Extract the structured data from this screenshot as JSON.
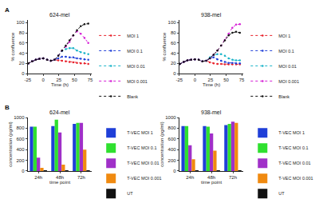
{
  "panel_labels": [
    "A",
    "B"
  ],
  "chart_data": [
    {
      "type": "line",
      "title": "624-mel",
      "x_label": "Time (h)",
      "y_label": "% confluence",
      "x": [
        -24,
        -18,
        -12,
        -6,
        0,
        6,
        12,
        18,
        24,
        30,
        36,
        42,
        48,
        54,
        60,
        66,
        72
      ],
      "series": [
        {
          "name": "MOI 1",
          "color": "#e8202a",
          "values": [
            20,
            24,
            27,
            29,
            30,
            27,
            25,
            27,
            26,
            25,
            24,
            23,
            22,
            21,
            20,
            20,
            19
          ]
        },
        {
          "name": "MOI 0.1",
          "color": "#1f3fd8",
          "values": [
            20,
            24,
            27,
            29,
            30,
            27,
            25,
            27,
            30,
            33,
            33,
            32,
            32,
            30,
            29,
            28,
            27
          ]
        },
        {
          "name": "MOI 0.01",
          "color": "#17b3c8",
          "values": [
            20,
            24,
            27,
            29,
            30,
            27,
            25,
            27,
            35,
            44,
            48,
            50,
            50,
            45,
            42,
            40,
            38
          ]
        },
        {
          "name": "MOI 0.001",
          "color": "#d61fd6",
          "values": [
            20,
            24,
            27,
            29,
            30,
            27,
            25,
            27,
            35,
            45,
            53,
            62,
            75,
            83,
            78,
            70,
            60
          ]
        },
        {
          "name": "Blank",
          "color": "#111111",
          "values": [
            20,
            24,
            27,
            29,
            30,
            27,
            25,
            27,
            35,
            45,
            55,
            65,
            75,
            85,
            93,
            97,
            98
          ]
        }
      ],
      "xlim": [
        -25,
        78
      ],
      "xticks": [
        -25,
        0,
        25,
        50,
        75
      ],
      "ylim": [
        0,
        105
      ],
      "yticks": [
        0,
        20,
        40,
        60,
        80,
        100
      ],
      "grid": false,
      "legend": "right",
      "marker": "circle",
      "line_style": "dotted"
    },
    {
      "type": "line",
      "title": "938-mel",
      "x_label": "Time (h)",
      "y_label": "% confluence",
      "x": [
        -24,
        -18,
        -12,
        -6,
        0,
        6,
        12,
        18,
        24,
        30,
        36,
        42,
        48,
        54,
        60,
        66,
        72
      ],
      "series": [
        {
          "name": "MOI 1",
          "color": "#e8202a",
          "values": [
            19,
            23,
            26,
            27,
            28,
            27,
            24,
            25,
            22,
            20,
            19,
            19,
            18,
            18,
            18,
            18,
            18
          ]
        },
        {
          "name": "MOI 0.1",
          "color": "#1f3fd8",
          "values": [
            19,
            23,
            26,
            27,
            28,
            27,
            24,
            25,
            30,
            32,
            28,
            25,
            23,
            21,
            21,
            20,
            20
          ]
        },
        {
          "name": "MOI 0.01",
          "color": "#17b3c8",
          "values": [
            19,
            23,
            26,
            27,
            28,
            27,
            24,
            25,
            32,
            36,
            38,
            38,
            35,
            30,
            27,
            26,
            26
          ]
        },
        {
          "name": "MOI 0.001",
          "color": "#d61fd6",
          "values": [
            19,
            23,
            26,
            27,
            28,
            27,
            24,
            25,
            30,
            37,
            45,
            55,
            66,
            78,
            90,
            96,
            97
          ]
        },
        {
          "name": "Blank",
          "color": "#111111",
          "values": [
            19,
            23,
            26,
            27,
            28,
            27,
            24,
            25,
            30,
            37,
            45,
            55,
            65,
            75,
            80,
            82,
            80
          ]
        }
      ],
      "xlim": [
        -25,
        78
      ],
      "xticks": [
        -25,
        0,
        25,
        50,
        75
      ],
      "ylim": [
        0,
        105
      ],
      "yticks": [
        0,
        20,
        40,
        60,
        80,
        100
      ],
      "grid": false,
      "legend": "right",
      "marker": "circle",
      "line_style": "dotted"
    },
    {
      "type": "bar",
      "title": "624-mel",
      "x_label": "time point",
      "y_label": "concentration (pg/ml)",
      "categories": [
        "24h",
        "48h",
        "72h"
      ],
      "series": [
        {
          "name": "T-VEC MOI 1",
          "color": "#1f3fd8",
          "values": [
            830,
            840,
            880
          ]
        },
        {
          "name": "T-VEC MOI 0.1",
          "color": "#2fe02f",
          "values": [
            830,
            960,
            900
          ]
        },
        {
          "name": "T-VEC MOI 0.01",
          "color": "#a030c8",
          "values": [
            250,
            720,
            900
          ]
        },
        {
          "name": "T-VEC MOI 0.001",
          "color": "#f08a10",
          "values": [
            60,
            120,
            400
          ]
        },
        {
          "name": "UT",
          "color": "#111111",
          "values": [
            5,
            5,
            5
          ]
        }
      ],
      "ylim": [
        0,
        1000
      ],
      "yticks": [
        0,
        200,
        400,
        600,
        800,
        1000
      ],
      "grid": false,
      "legend": "right"
    },
    {
      "type": "bar",
      "title": "938-mel",
      "x_label": "time point",
      "y_label": "concentration (pg/ml)",
      "categories": [
        "24h",
        "48h",
        "72h"
      ],
      "series": [
        {
          "name": "T-VEC MOI 1",
          "color": "#1f3fd8",
          "values": [
            840,
            840,
            860
          ]
        },
        {
          "name": "T-VEC MOI 0.1",
          "color": "#2fe02f",
          "values": [
            840,
            830,
            880
          ]
        },
        {
          "name": "T-VEC MOI 0.01",
          "color": "#a030c8",
          "values": [
            480,
            700,
            920
          ]
        },
        {
          "name": "T-VEC MOI 0.001",
          "color": "#f08a10",
          "values": [
            220,
            380,
            900
          ]
        },
        {
          "name": "UT",
          "color": "#111111",
          "values": [
            5,
            5,
            5
          ]
        }
      ],
      "ylim": [
        0,
        1000
      ],
      "yticks": [
        0,
        200,
        400,
        600,
        800,
        1000
      ],
      "grid": false,
      "legend": "right"
    }
  ]
}
